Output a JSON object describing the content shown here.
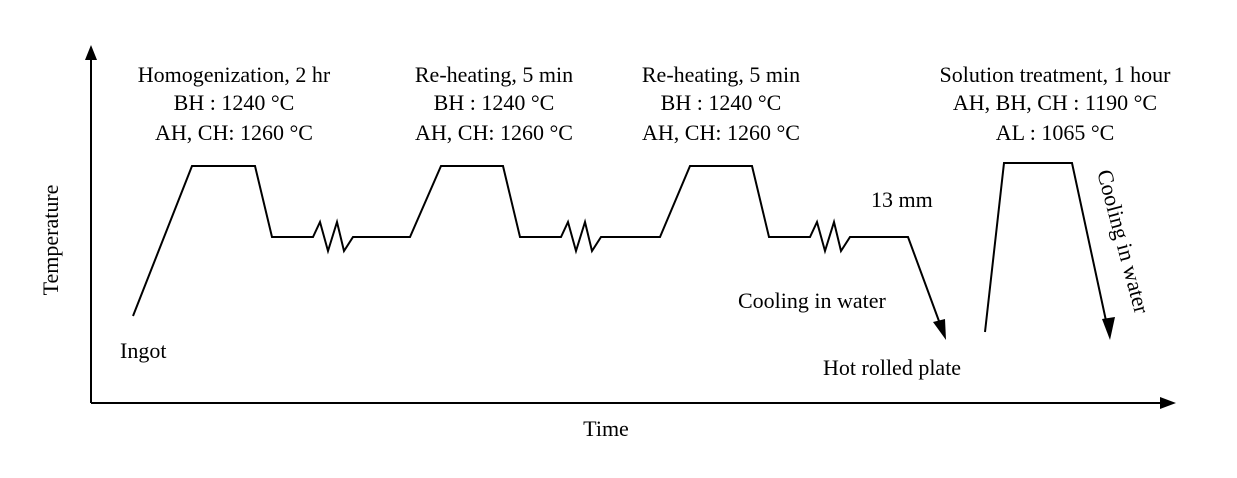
{
  "axes": {
    "x_label": "Time",
    "y_label": "Temperature"
  },
  "stages": [
    {
      "title": "Homogenization, 2 hr",
      "line2": "BH : 1240 °C",
      "line3": "AH, CH: 1260 °C"
    },
    {
      "title": "Re-heating, 5 min",
      "line2": "BH : 1240 °C",
      "line3": "AH, CH: 1260 °C"
    },
    {
      "title": "Re-heating, 5 min",
      "line2": "BH : 1240 °C",
      "line3": "AH, CH: 1260 °C"
    },
    {
      "title": "Solution treatment, 1 hour",
      "line2": "AH, BH, CH : 1190 °C",
      "line3": "AL : 1065 °C"
    }
  ],
  "labels": {
    "start": "Ingot",
    "thickness": "13 mm",
    "quench_plate": "Cooling in water",
    "product": "Hot rolled plate",
    "quench_solution": "Cooling in water"
  },
  "colors": {
    "line": "#000000",
    "background": "#ffffff"
  }
}
